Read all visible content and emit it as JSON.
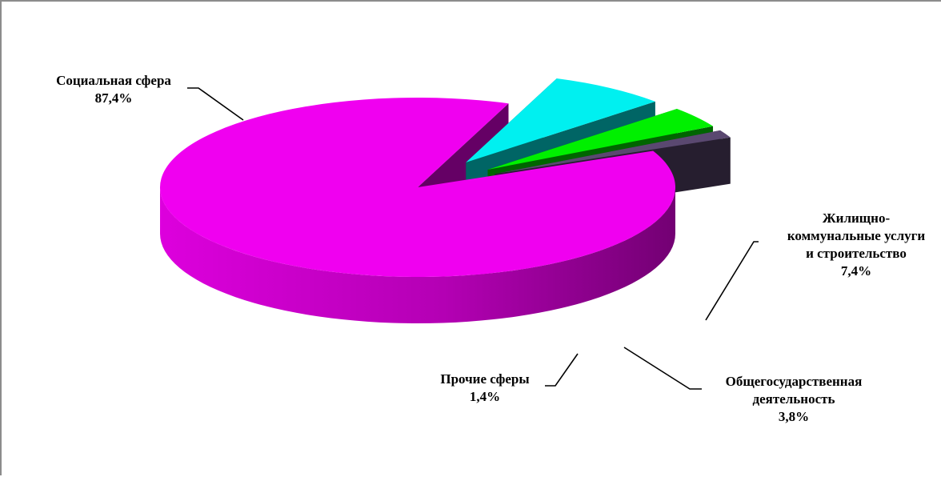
{
  "chart_data": {
    "type": "pie",
    "style": "3d-exploded",
    "title": "",
    "slices": [
      {
        "label_lines": [
          "Социальная сфера"
        ],
        "value_label": "87,4%",
        "value": 87.4,
        "color": "#f000f0"
      },
      {
        "label_lines": [
          "Жилищно-",
          "коммунальные услуги",
          "и строительство"
        ],
        "value_label": "7,4%",
        "value": 7.4,
        "color": "#00f0f0"
      },
      {
        "label_lines": [
          "Общегосударственная",
          "деятельность"
        ],
        "value_label": "3,8%",
        "value": 3.8,
        "color": "#00f000"
      },
      {
        "label_lines": [
          "Прочие сферы"
        ],
        "value_label": "1,4%",
        "value": 1.4,
        "color": "#5a4870"
      }
    ],
    "legend": "none",
    "data_labels": "outside-with-leader-lines"
  }
}
